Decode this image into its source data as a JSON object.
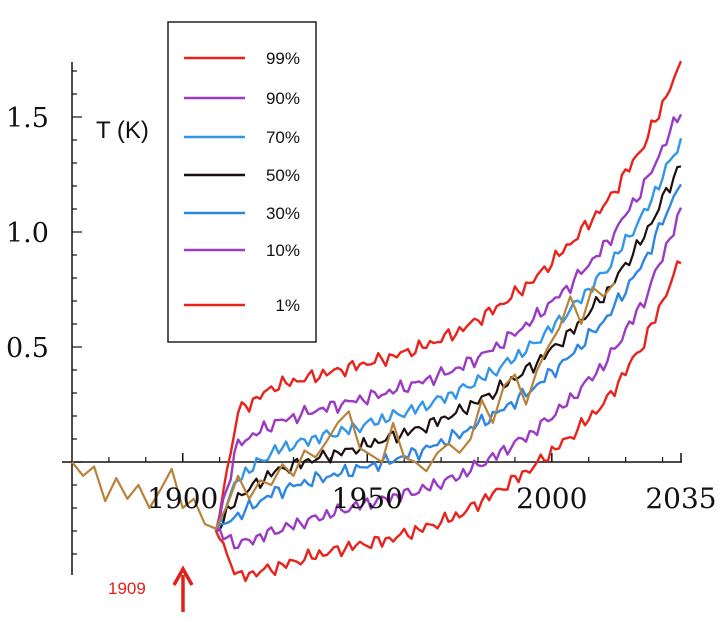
{
  "chart_data": {
    "type": "line",
    "ylabel": "T (K)",
    "xlabel": "",
    "xlim": [
      1870,
      2035
    ],
    "ylim": [
      -0.5,
      1.75
    ],
    "x_ticks": [
      {
        "value": 1900,
        "label": "1900"
      },
      {
        "value": 1950,
        "label": "1950"
      },
      {
        "value": 2000,
        "label": "2000"
      },
      {
        "value": 2035,
        "label": "2035"
      }
    ],
    "y_ticks": [
      {
        "value": 0.5,
        "label": "0.5"
      },
      {
        "value": 1.0,
        "label": "1.0"
      },
      {
        "value": 1.5,
        "label": "1.5"
      }
    ],
    "annotation": {
      "text": "1909",
      "x": 1909,
      "color": "#e0201b"
    },
    "legend_placement": "top-left",
    "series": [
      {
        "name": "99%",
        "color": "#e8231c",
        "x": [
          1909,
          1915,
          1925,
          1935,
          1945,
          1955,
          1965,
          1975,
          1985,
          1995,
          2005,
          2015,
          2025,
          2035
        ],
        "y": [
          -0.3,
          0.22,
          0.33,
          0.37,
          0.41,
          0.45,
          0.5,
          0.57,
          0.67,
          0.79,
          0.95,
          1.13,
          1.38,
          1.73
        ]
      },
      {
        "name": "90%",
        "color": "#9b3bc4",
        "x": [
          1909,
          1915,
          1925,
          1935,
          1945,
          1955,
          1965,
          1975,
          1985,
          1995,
          2005,
          2015,
          2025,
          2035
        ],
        "y": [
          -0.3,
          0.08,
          0.17,
          0.22,
          0.26,
          0.3,
          0.35,
          0.41,
          0.5,
          0.62,
          0.77,
          0.95,
          1.2,
          1.53
        ]
      },
      {
        "name": "70%",
        "color": "#3396e8",
        "x": [
          1909,
          1915,
          1925,
          1935,
          1945,
          1955,
          1965,
          1975,
          1985,
          1995,
          2005,
          2015,
          2025,
          2035
        ],
        "y": [
          -0.3,
          -0.07,
          0.05,
          0.1,
          0.14,
          0.19,
          0.24,
          0.31,
          0.4,
          0.51,
          0.66,
          0.84,
          1.08,
          1.4
        ]
      },
      {
        "name": "50%",
        "color": "#1e0f0f",
        "x": [
          1909,
          1915,
          1925,
          1935,
          1945,
          1955,
          1965,
          1975,
          1985,
          1995,
          2005,
          2015,
          2025,
          2035
        ],
        "y": [
          -0.3,
          -0.15,
          -0.04,
          0.01,
          0.05,
          0.1,
          0.15,
          0.22,
          0.31,
          0.42,
          0.56,
          0.74,
          0.98,
          1.3
        ]
      },
      {
        "name": "30%",
        "color": "#2f86e0",
        "x": [
          1909,
          1915,
          1925,
          1935,
          1945,
          1955,
          1965,
          1975,
          1985,
          1995,
          2005,
          2015,
          2025,
          2035
        ],
        "y": [
          -0.3,
          -0.23,
          -0.13,
          -0.08,
          -0.04,
          0.0,
          0.05,
          0.12,
          0.21,
          0.32,
          0.46,
          0.63,
          0.87,
          1.22
        ]
      },
      {
        "name": "10%",
        "color": "#9b3bc4",
        "x": [
          1909,
          1915,
          1925,
          1935,
          1945,
          1955,
          1965,
          1975,
          1985,
          1995,
          2005,
          2015,
          2025,
          2035
        ],
        "y": [
          -0.3,
          -0.36,
          -0.3,
          -0.25,
          -0.2,
          -0.16,
          -0.12,
          -0.06,
          0.03,
          0.13,
          0.27,
          0.44,
          0.7,
          1.09
        ]
      },
      {
        "name": "1%",
        "color": "#e8231c",
        "x": [
          1909,
          1915,
          1925,
          1935,
          1945,
          1955,
          1965,
          1975,
          1985,
          1995,
          2005,
          2015,
          2025,
          2035
        ],
        "y": [
          -0.3,
          -0.5,
          -0.46,
          -0.41,
          -0.37,
          -0.34,
          -0.29,
          -0.23,
          -0.13,
          -0.02,
          0.11,
          0.27,
          0.52,
          0.88
        ]
      }
    ],
    "observed": {
      "color": "#b8823a",
      "x": [
        1870,
        1873,
        1876,
        1879,
        1882,
        1885,
        1888,
        1891,
        1894,
        1897,
        1900,
        1903,
        1906,
        1909,
        1912,
        1915,
        1918,
        1921,
        1924,
        1927,
        1930,
        1933,
        1936,
        1939,
        1942,
        1945,
        1948,
        1951,
        1954,
        1957,
        1960,
        1963,
        1966,
        1969,
        1972,
        1975,
        1978,
        1981,
        1984,
        1987,
        1990,
        1993,
        1996,
        1999,
        2002,
        2005,
        2008,
        2011,
        2014,
        2017
      ],
      "y": [
        0.0,
        -0.06,
        -0.02,
        -0.17,
        -0.07,
        -0.16,
        -0.1,
        -0.2,
        -0.12,
        -0.03,
        -0.2,
        -0.16,
        -0.27,
        -0.29,
        -0.19,
        -0.06,
        -0.16,
        -0.08,
        -0.1,
        -0.01,
        -0.06,
        0.05,
        0.02,
        0.09,
        0.17,
        0.22,
        0.06,
        0.03,
        0.0,
        0.17,
        0.02,
        0.0,
        -0.04,
        0.04,
        0.08,
        0.04,
        0.1,
        0.27,
        0.17,
        0.33,
        0.38,
        0.25,
        0.4,
        0.5,
        0.58,
        0.72,
        0.6,
        0.76,
        0.72,
        0.78
      ]
    }
  }
}
